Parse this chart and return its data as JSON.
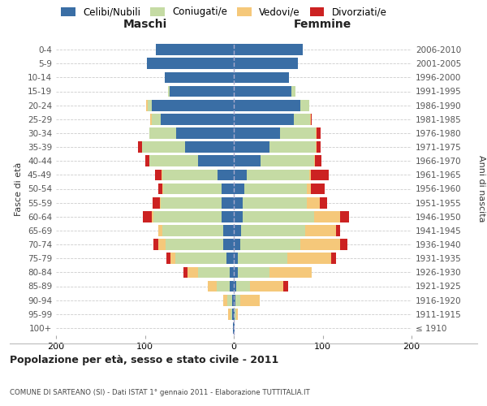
{
  "age_groups": [
    "100+",
    "95-99",
    "90-94",
    "85-89",
    "80-84",
    "75-79",
    "70-74",
    "65-69",
    "60-64",
    "55-59",
    "50-54",
    "45-49",
    "40-44",
    "35-39",
    "30-34",
    "25-29",
    "20-24",
    "15-19",
    "10-14",
    "5-9",
    "0-4"
  ],
  "birth_years": [
    "≤ 1910",
    "1911-1915",
    "1916-1920",
    "1921-1925",
    "1926-1930",
    "1931-1935",
    "1936-1940",
    "1941-1945",
    "1946-1950",
    "1951-1955",
    "1956-1960",
    "1961-1965",
    "1966-1970",
    "1971-1975",
    "1976-1980",
    "1981-1985",
    "1986-1990",
    "1991-1995",
    "1996-2000",
    "2001-2005",
    "2006-2010"
  ],
  "maschi_celibe": [
    1,
    2,
    2,
    5,
    5,
    8,
    12,
    12,
    14,
    14,
    14,
    18,
    40,
    55,
    65,
    82,
    92,
    72,
    78,
    98,
    88
  ],
  "maschi_coniugato": [
    0,
    2,
    5,
    14,
    35,
    58,
    65,
    68,
    76,
    68,
    65,
    62,
    55,
    48,
    30,
    10,
    5,
    2,
    0,
    0,
    0
  ],
  "maschi_vedovo": [
    0,
    2,
    5,
    10,
    12,
    5,
    8,
    5,
    2,
    1,
    1,
    1,
    0,
    0,
    0,
    2,
    2,
    0,
    0,
    0,
    0
  ],
  "maschi_divorziato": [
    0,
    0,
    0,
    0,
    5,
    5,
    5,
    0,
    10,
    8,
    5,
    8,
    5,
    5,
    0,
    0,
    0,
    0,
    0,
    0,
    0
  ],
  "femmine_celibe": [
    1,
    1,
    2,
    3,
    5,
    5,
    7,
    8,
    10,
    10,
    12,
    15,
    30,
    40,
    52,
    68,
    75,
    65,
    62,
    72,
    78
  ],
  "femmine_coniugato": [
    0,
    2,
    5,
    15,
    35,
    55,
    68,
    72,
    80,
    72,
    70,
    70,
    60,
    52,
    40,
    18,
    10,
    4,
    0,
    0,
    0
  ],
  "femmine_vedovo": [
    0,
    2,
    22,
    38,
    48,
    50,
    45,
    35,
    30,
    15,
    5,
    2,
    1,
    1,
    1,
    1,
    0,
    0,
    0,
    0,
    0
  ],
  "femmine_divorziato": [
    0,
    0,
    0,
    5,
    0,
    5,
    8,
    5,
    10,
    8,
    15,
    20,
    8,
    5,
    5,
    1,
    0,
    0,
    0,
    0,
    0
  ],
  "colors": {
    "celibe": "#3a6ea5",
    "coniugato": "#c5dba4",
    "vedovo": "#f5c87a",
    "divorziato": "#cc2222"
  },
  "title": "Popolazione per età, sesso e stato civile - 2011",
  "subtitle": "COMUNE DI SARTEANO (SI) - Dati ISTAT 1° gennaio 2011 - Elaborazione TUTTITALIA.IT",
  "ylabel": "Fasce di età",
  "ylabel_right": "Anni di nascita",
  "header_left": "Maschi",
  "header_right": "Femmine",
  "xlim": 200,
  "background_color": "#ffffff",
  "grid_color": "#cccccc"
}
